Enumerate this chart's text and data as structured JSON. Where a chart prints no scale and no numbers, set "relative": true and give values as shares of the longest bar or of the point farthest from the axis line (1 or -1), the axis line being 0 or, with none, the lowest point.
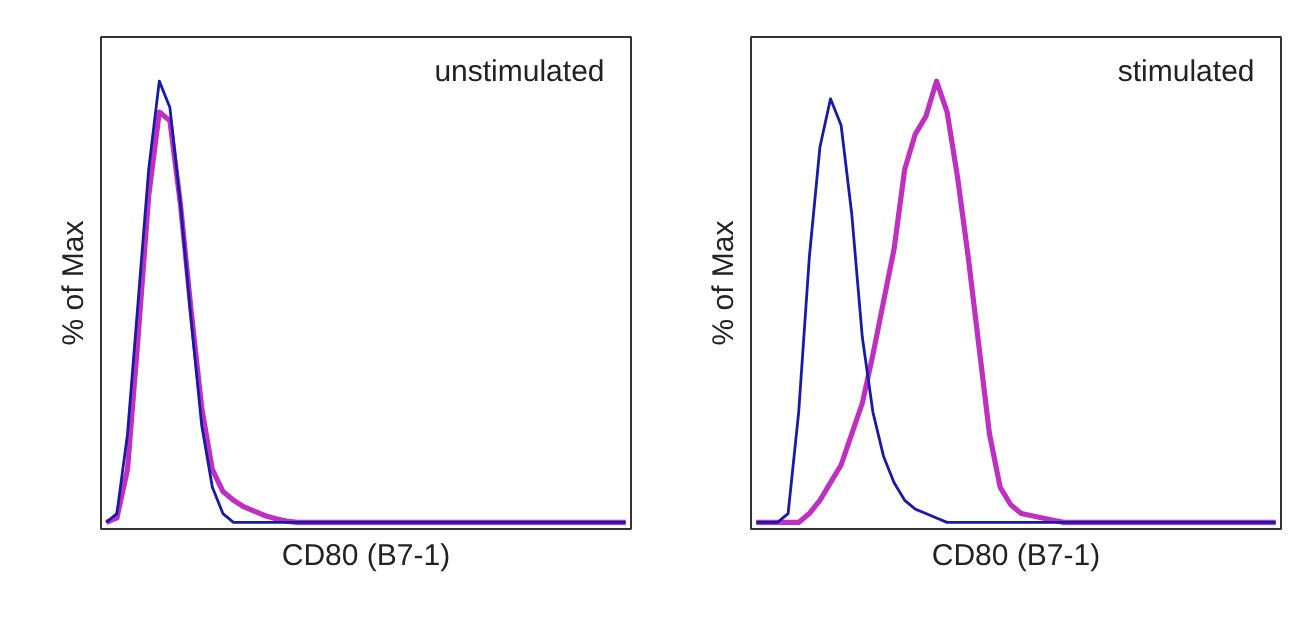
{
  "chart_data": [
    {
      "type": "line",
      "relative": true,
      "ylabel": "% of Max",
      "xlabel": "CD80 (B7-1)",
      "annotations": [
        "unstimulated"
      ],
      "marker": "none",
      "line_style": "solid",
      "categories": [
        null,
        null,
        null,
        null,
        null,
        null,
        null,
        null,
        null,
        null,
        null,
        null,
        null,
        null,
        null,
        null,
        null,
        null,
        null,
        null,
        null,
        null,
        null,
        null,
        null,
        null,
        null,
        null,
        null,
        null,
        null,
        null,
        null,
        null,
        null,
        null,
        null,
        null,
        null,
        null,
        null,
        null,
        null,
        null,
        null,
        null,
        null,
        null,
        null,
        null
      ],
      "series": [
        {
          "color": "#1a1aa8",
          "values": [
            0,
            0.02,
            0.2,
            0.5,
            0.8,
            1,
            0.94,
            0.72,
            0.46,
            0.22,
            0.08,
            0.02,
            0,
            0,
            0,
            0,
            0,
            0,
            0,
            0,
            0,
            0,
            0,
            0,
            0,
            0,
            0,
            0,
            0,
            0,
            0,
            0,
            0,
            0,
            0,
            0,
            0,
            0,
            0,
            0,
            0,
            0,
            0,
            0,
            0,
            0,
            0,
            0,
            0,
            0
          ]
        },
        {
          "color": "#c030c0",
          "values": [
            0,
            0.01,
            0.12,
            0.42,
            0.74,
            0.93,
            0.91,
            0.72,
            0.48,
            0.26,
            0.12,
            0.07,
            0.05,
            0.035,
            0.025,
            0.015,
            0.008,
            0.003,
            0,
            0,
            0,
            0,
            0,
            0,
            0,
            0,
            0,
            0,
            0,
            0,
            0,
            0,
            0,
            0,
            0,
            0,
            0,
            0,
            0,
            0,
            0,
            0,
            0,
            0,
            0,
            0,
            0,
            0,
            0,
            0
          ]
        }
      ]
    },
    {
      "type": "line",
      "relative": true,
      "ylabel": "% of Max",
      "xlabel": "CD80 (B7-1)",
      "annotations": [
        "stimulated"
      ],
      "marker": "none",
      "line_style": "solid",
      "categories": [
        null,
        null,
        null,
        null,
        null,
        null,
        null,
        null,
        null,
        null,
        null,
        null,
        null,
        null,
        null,
        null,
        null,
        null,
        null,
        null,
        null,
        null,
        null,
        null,
        null,
        null,
        null,
        null,
        null,
        null,
        null,
        null,
        null,
        null,
        null,
        null,
        null,
        null,
        null,
        null,
        null,
        null,
        null,
        null,
        null,
        null,
        null,
        null,
        null,
        null
      ],
      "series": [
        {
          "color": "#1a1aa8",
          "values": [
            0,
            0,
            0,
            0.02,
            0.25,
            0.6,
            0.85,
            0.96,
            0.9,
            0.7,
            0.42,
            0.25,
            0.15,
            0.09,
            0.05,
            0.03,
            0.02,
            0.01,
            0,
            0,
            0,
            0,
            0,
            0,
            0,
            0,
            0,
            0,
            0,
            0,
            0,
            0,
            0,
            0,
            0,
            0,
            0,
            0,
            0,
            0,
            0,
            0,
            0,
            0,
            0,
            0,
            0,
            0,
            0,
            0
          ]
        },
        {
          "color": "#c030c0",
          "values": [
            0,
            0,
            0,
            0,
            0,
            0.02,
            0.05,
            0.09,
            0.13,
            0.2,
            0.27,
            0.38,
            0.5,
            0.62,
            0.8,
            0.88,
            0.92,
            1,
            0.93,
            0.78,
            0.6,
            0.4,
            0.2,
            0.08,
            0.04,
            0.02,
            0.015,
            0.01,
            0.005,
            0,
            0,
            0,
            0,
            0,
            0,
            0,
            0,
            0,
            0,
            0,
            0,
            0,
            0,
            0,
            0,
            0,
            0,
            0,
            0,
            0
          ]
        }
      ]
    }
  ]
}
